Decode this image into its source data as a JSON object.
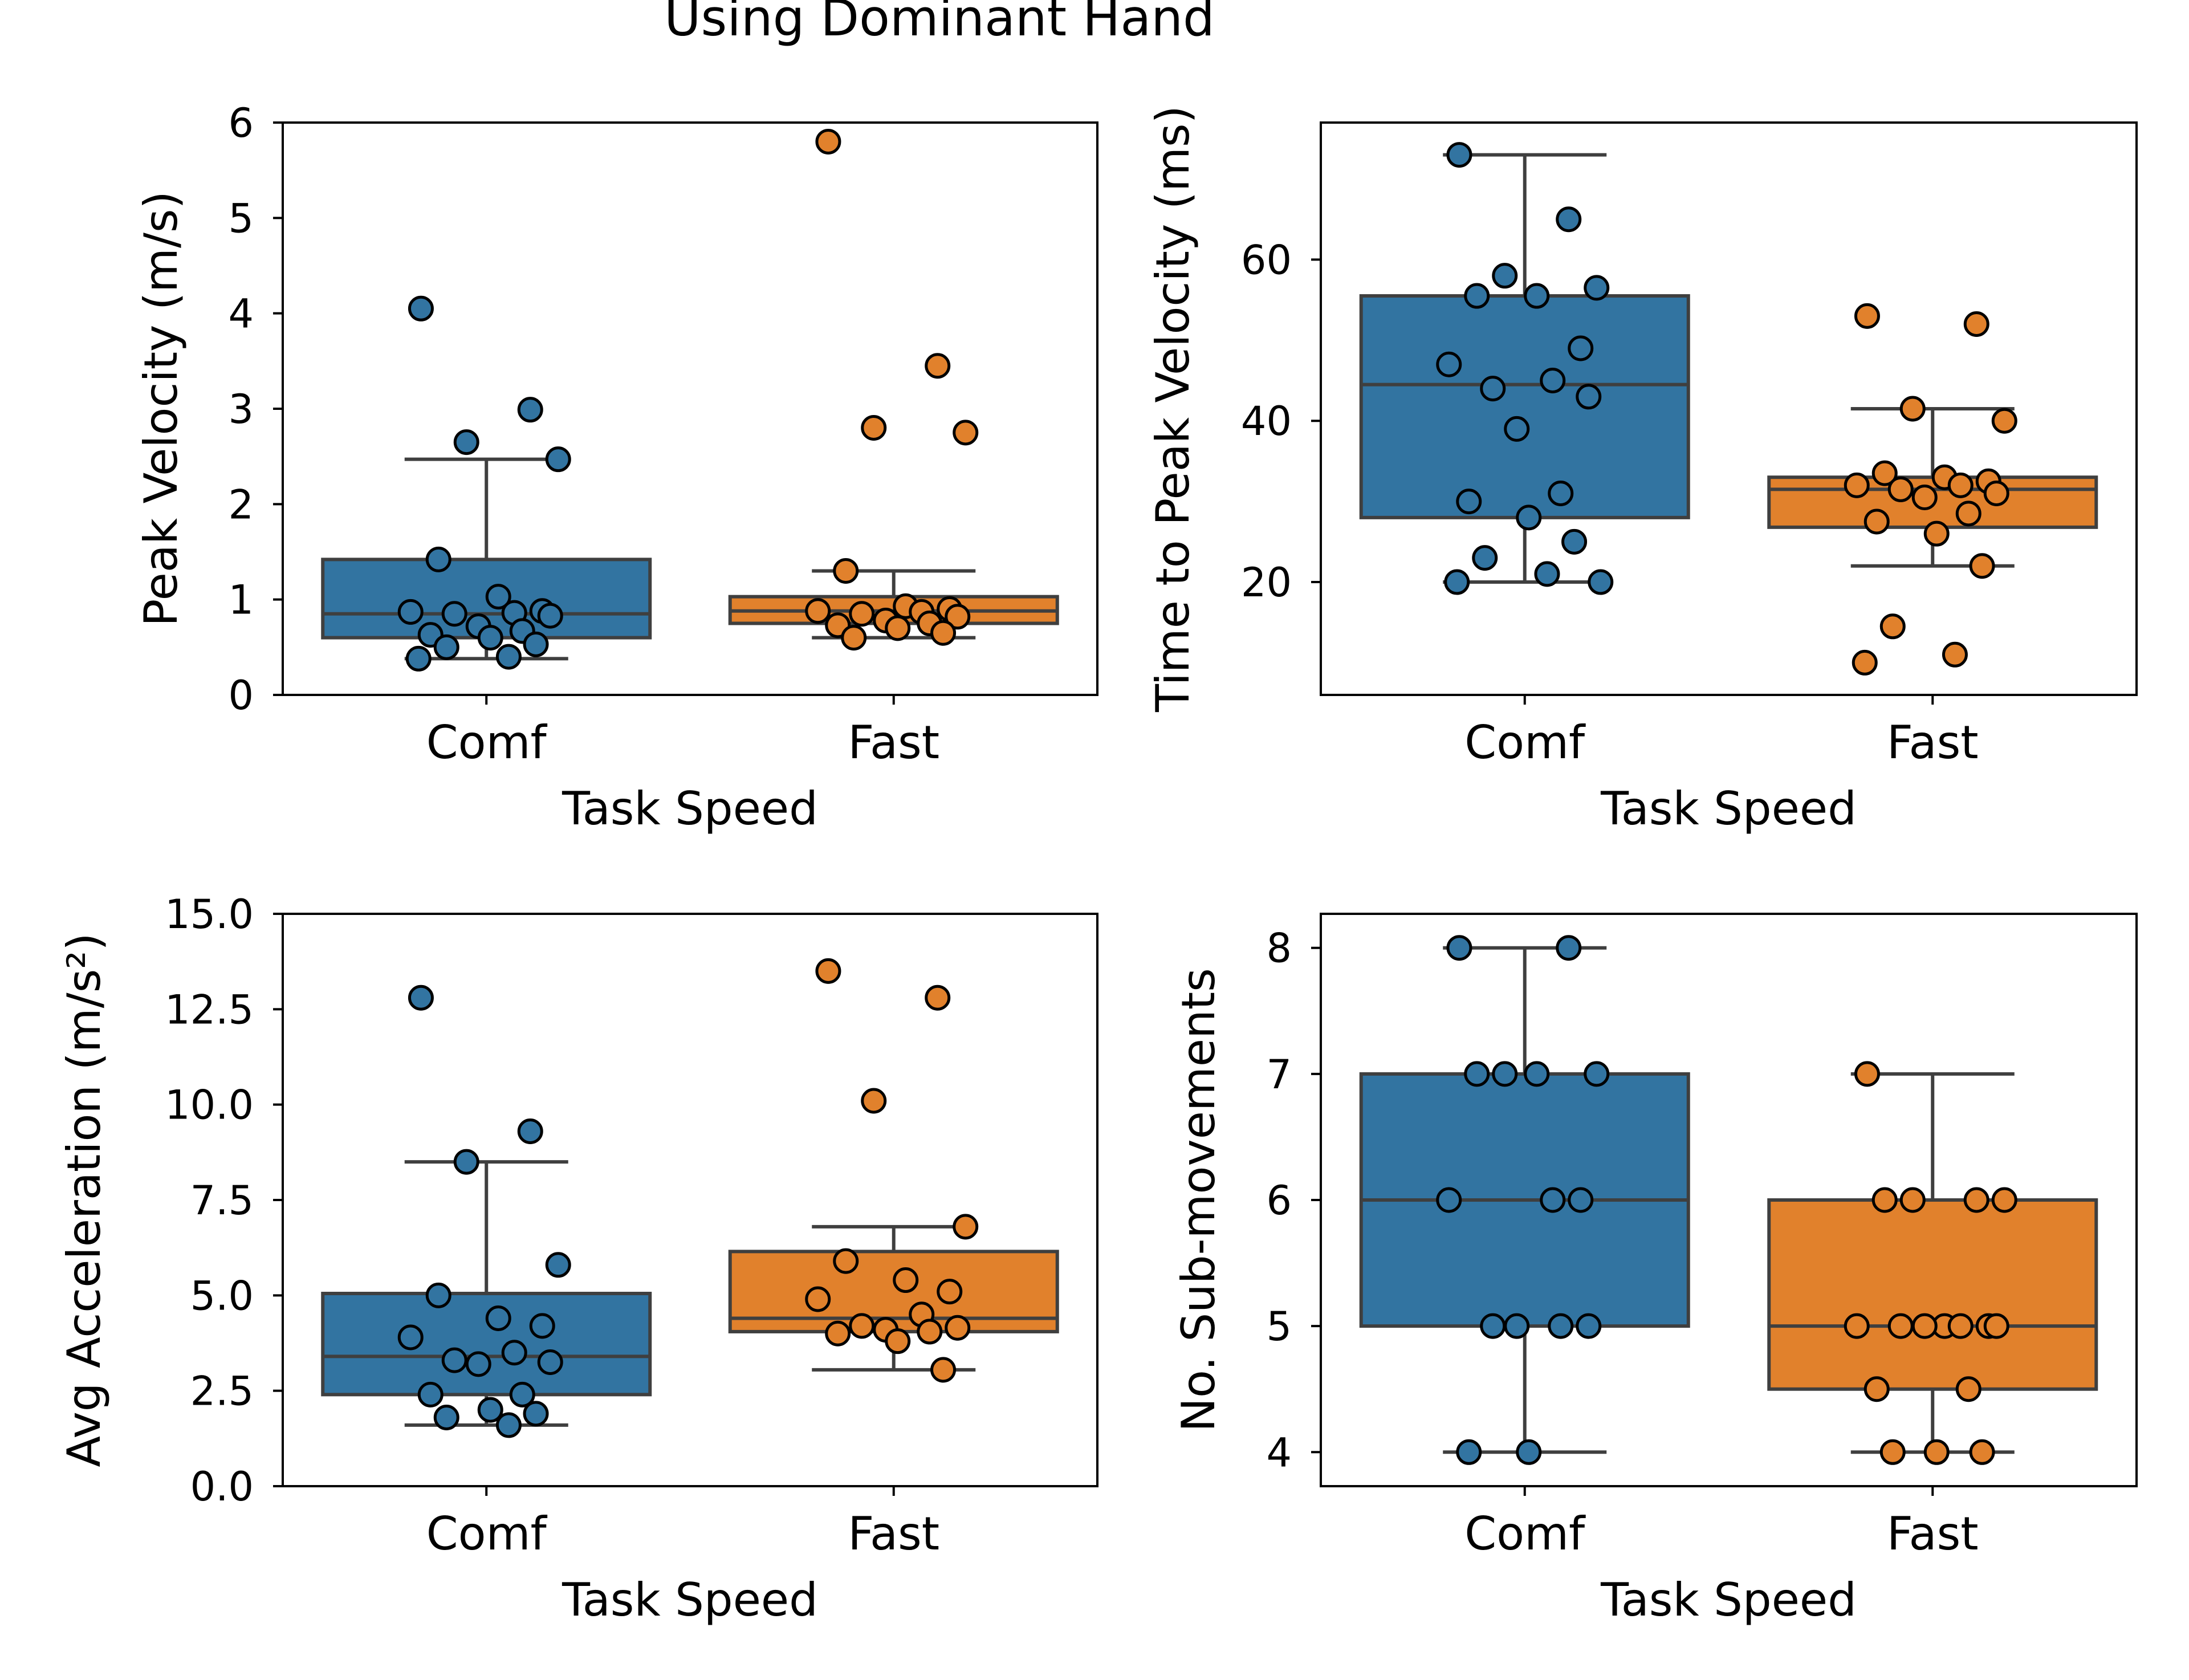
{
  "figure": {
    "suptitle": "Using Dominant Hand"
  },
  "colors": {
    "comf": "#3274a1",
    "fast": "#e1812c",
    "line": "#3f3f3f",
    "edge": "#000000"
  },
  "chart_data": [
    {
      "type": "box",
      "xlabel": "Task Speed",
      "ylabel": "Peak Velocity (m/s)",
      "categories": [
        "Comf",
        "Fast"
      ],
      "ylim": [
        0,
        6
      ],
      "yticks": [
        0,
        1,
        2,
        3,
        4,
        5,
        6
      ],
      "ytick_labels": [
        "0",
        "1",
        "2",
        "3",
        "4",
        "5",
        "6"
      ],
      "boxes": [
        {
          "category": "Comf",
          "whisker_low": 0.38,
          "q1": 0.6,
          "median": 0.85,
          "q3": 1.42,
          "whisker_high": 2.47
        },
        {
          "category": "Fast",
          "whisker_low": 0.6,
          "q1": 0.75,
          "median": 0.88,
          "q3": 1.03,
          "whisker_high": 1.3
        }
      ],
      "points": [
        {
          "category": "Comf",
          "values": [
            4.05,
            2.99,
            2.65,
            2.47,
            1.42,
            1.03,
            0.88,
            0.87,
            0.86,
            0.85,
            0.83,
            0.72,
            0.67,
            0.63,
            0.6,
            0.53,
            0.5,
            0.4,
            0.38
          ]
        },
        {
          "category": "Fast",
          "values": [
            5.8,
            3.45,
            2.8,
            2.75,
            1.3,
            0.93,
            0.9,
            0.88,
            0.87,
            0.85,
            0.82,
            0.78,
            0.75,
            0.73,
            0.7,
            0.65,
            0.6
          ]
        }
      ]
    },
    {
      "type": "box",
      "xlabel": "Task Speed",
      "ylabel": "Time to Peak Velocity (ms)",
      "categories": [
        "Comf",
        "Fast"
      ],
      "ylim": [
        6,
        77
      ],
      "yticks": [
        20,
        40,
        60
      ],
      "ytick_labels": [
        "20",
        "40",
        "60"
      ],
      "boxes": [
        {
          "category": "Comf",
          "whisker_low": 20,
          "q1": 28,
          "median": 44.5,
          "q3": 55.5,
          "whisker_high": 73
        },
        {
          "category": "Fast",
          "whisker_low": 22,
          "q1": 26.8,
          "median": 31.5,
          "q3": 33,
          "whisker_high": 41.5
        }
      ],
      "points": [
        {
          "category": "Comf",
          "values": [
            73,
            65,
            58,
            56.5,
            55.5,
            55.5,
            49,
            47,
            45,
            44,
            43,
            39,
            31,
            30,
            28,
            25,
            23,
            21,
            20,
            20
          ]
        },
        {
          "category": "Fast",
          "values": [
            53,
            52,
            41.5,
            40,
            33.5,
            33,
            32.5,
            32,
            32,
            31.5,
            31,
            30.5,
            28.5,
            27.5,
            26,
            22,
            14.5,
            11,
            10
          ]
        }
      ]
    },
    {
      "type": "box",
      "xlabel": "Task Speed",
      "ylabel": "Avg Acceleration (m/s²)",
      "categories": [
        "Comf",
        "Fast"
      ],
      "ylim": [
        0,
        15
      ],
      "yticks": [
        0,
        2.5,
        5,
        7.5,
        10,
        12.5,
        15
      ],
      "ytick_labels": [
        "0.0",
        "2.5",
        "5.0",
        "7.5",
        "10.0",
        "12.5",
        "15.0"
      ],
      "boxes": [
        {
          "category": "Comf",
          "whisker_low": 1.6,
          "q1": 2.4,
          "median": 3.4,
          "q3": 5.05,
          "whisker_high": 8.5
        },
        {
          "category": "Fast",
          "whisker_low": 3.05,
          "q1": 4.05,
          "median": 4.4,
          "q3": 6.15,
          "whisker_high": 6.8
        }
      ],
      "points": [
        {
          "category": "Comf",
          "values": [
            12.8,
            9.3,
            8.5,
            5.8,
            5.0,
            4.4,
            4.2,
            3.9,
            3.5,
            3.3,
            3.25,
            3.2,
            2.4,
            2.4,
            2.0,
            1.9,
            1.8,
            1.6
          ]
        },
        {
          "category": "Fast",
          "values": [
            13.5,
            12.8,
            10.1,
            6.8,
            5.9,
            5.4,
            5.1,
            4.9,
            4.5,
            4.2,
            4.15,
            4.1,
            4.05,
            4.0,
            3.8,
            3.05
          ]
        }
      ]
    },
    {
      "type": "box",
      "xlabel": "Task Speed",
      "ylabel": "No. Sub-movements",
      "categories": [
        "Comf",
        "Fast"
      ],
      "ylim": [
        3.73,
        8.27
      ],
      "yticks": [
        4,
        5,
        6,
        7,
        8
      ],
      "ytick_labels": [
        "4",
        "5",
        "6",
        "7",
        "8"
      ],
      "boxes": [
        {
          "category": "Comf",
          "whisker_low": 4,
          "q1": 5,
          "median": 6,
          "q3": 7,
          "whisker_high": 8
        },
        {
          "category": "Fast",
          "whisker_low": 4,
          "q1": 4.5,
          "median": 5,
          "q3": 6,
          "whisker_high": 7
        }
      ],
      "points": [
        {
          "category": "Comf",
          "values": [
            8,
            8,
            7,
            7,
            7,
            7,
            6,
            6,
            6,
            5,
            5,
            5,
            5,
            4,
            4
          ]
        },
        {
          "category": "Fast",
          "values": [
            7,
            6,
            6,
            6,
            6,
            5,
            5,
            5,
            5,
            5,
            5,
            5,
            4.5,
            4.5,
            4,
            4,
            4
          ]
        }
      ]
    }
  ]
}
